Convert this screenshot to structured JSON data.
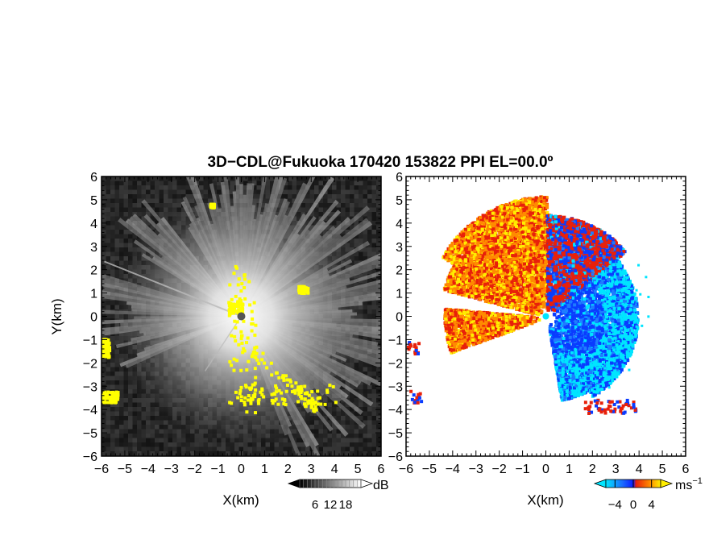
{
  "title": "3D−CDL@Fukuoka 170420 153822 PPI EL=00.0º",
  "chart_data": [
    {
      "type": "heatmap",
      "panel": "reflectivity",
      "xlabel": "X(km)",
      "ylabel": "Y(km)",
      "xlim": [
        -6,
        6
      ],
      "ylim": [
        -6,
        6
      ],
      "xticks": [
        "−6",
        "−5",
        "−4",
        "−3",
        "−2",
        "−1",
        "0",
        "1",
        "2",
        "3",
        "4",
        "5",
        "6"
      ],
      "yticks": [
        "−6",
        "−5",
        "−4",
        "−3",
        "−2",
        "−1",
        "0",
        "1",
        "2",
        "3",
        "4",
        "5",
        "6"
      ],
      "colorscale": "grayscale",
      "colorbar": {
        "unit": "dB",
        "ticks": [
          "6",
          "12",
          "18"
        ],
        "range": [
          0,
          24
        ]
      },
      "highlight_color": "#ffff00",
      "background": "#232323"
    },
    {
      "type": "heatmap",
      "panel": "doppler-velocity",
      "xlabel": "X(km)",
      "ylabel": "",
      "xlim": [
        -6,
        6
      ],
      "ylim": [
        -6,
        6
      ],
      "xticks": [
        "−6",
        "−5",
        "−4",
        "−3",
        "−2",
        "−1",
        "0",
        "1",
        "2",
        "3",
        "4",
        "5",
        "6"
      ],
      "yticks": [
        "−6",
        "−5",
        "−4",
        "−3",
        "−2",
        "−1",
        "0",
        "1",
        "2",
        "3",
        "4",
        "5",
        "6"
      ],
      "colorscale": "diverging cyan-blue-red-yellow",
      "colorbar": {
        "unit": "ms",
        "unit_exp": "−1",
        "ticks": [
          "−4",
          "0",
          "4"
        ],
        "range": [
          -6,
          6
        ]
      },
      "colors": {
        "cyan": "#00e5ff",
        "blue": "#0a3cff",
        "red": "#e8200a",
        "orange": "#ff8a00",
        "yellow": "#ffee00"
      }
    }
  ]
}
